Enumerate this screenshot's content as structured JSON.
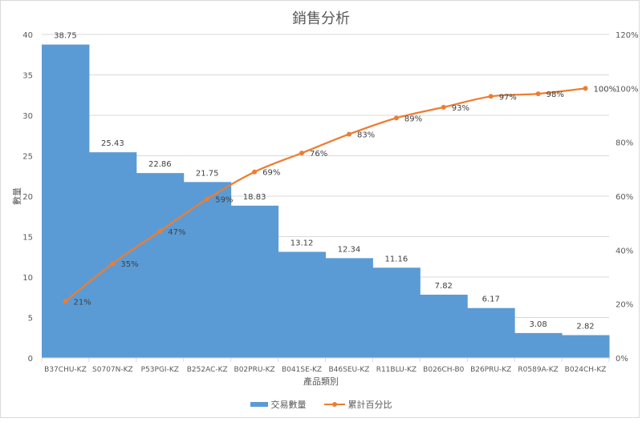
{
  "chart": {
    "title": "銷售分析",
    "xlabel": "產品類別",
    "ylabel": "數量",
    "legend": [
      {
        "label": "交易數量",
        "type": "bar",
        "color": "#5b9bd5"
      },
      {
        "label": "累計百分比",
        "type": "line",
        "color": "#ed7d31"
      }
    ]
  },
  "chart_data": {
    "type": "bar",
    "subtype": "pareto (bar + cumulative line on secondary axis)",
    "title": "銷售分析",
    "xlabel": "產品類別",
    "ylabel": "數量",
    "ylabel_secondary": "",
    "categories": [
      "B37CHU-KZ",
      "S0707N-KZ",
      "P53PGI-KZ",
      "B252AC-KZ",
      "B02PRU-KZ",
      "B041SE-KZ",
      "B46SEU-KZ",
      "R11BLU-KZ",
      "B026CH-B0",
      "B26PRU-KZ",
      "R0589A-KZ",
      "B024CH-KZ"
    ],
    "series": [
      {
        "name": "交易數量",
        "type": "bar",
        "axis": "primary",
        "color": "#5b9bd5",
        "values": [
          38.75,
          25.43,
          22.86,
          21.75,
          18.83,
          13.12,
          12.34,
          11.16,
          7.82,
          6.17,
          3.08,
          2.82
        ],
        "labels": [
          "38.75",
          "25.43",
          "22.86",
          "21.75",
          "18.83",
          "13.12",
          "12.34",
          "11.16",
          "7.82",
          "6.17",
          "3.08",
          "2.82"
        ]
      },
      {
        "name": "累計百分比",
        "type": "line",
        "axis": "secondary",
        "color": "#ed7d31",
        "values": [
          21,
          35,
          47,
          59,
          69,
          76,
          83,
          89,
          93,
          97,
          98,
          100
        ],
        "labels": [
          "21%",
          "35%",
          "47%",
          "59%",
          "69%",
          "76%",
          "83%",
          "89%",
          "93%",
          "97%",
          "98%",
          "100%"
        ]
      }
    ],
    "ylim": [
      0,
      40
    ],
    "yticks": [
      "0",
      "5",
      "10",
      "15",
      "20",
      "25",
      "30",
      "35",
      "40"
    ],
    "ylim_secondary": [
      0,
      120
    ],
    "yticks_secondary": [
      "0%",
      "20%",
      "40%",
      "60%",
      "80%",
      "100%",
      "120%"
    ],
    "grid": true,
    "legend_position": "bottom"
  }
}
